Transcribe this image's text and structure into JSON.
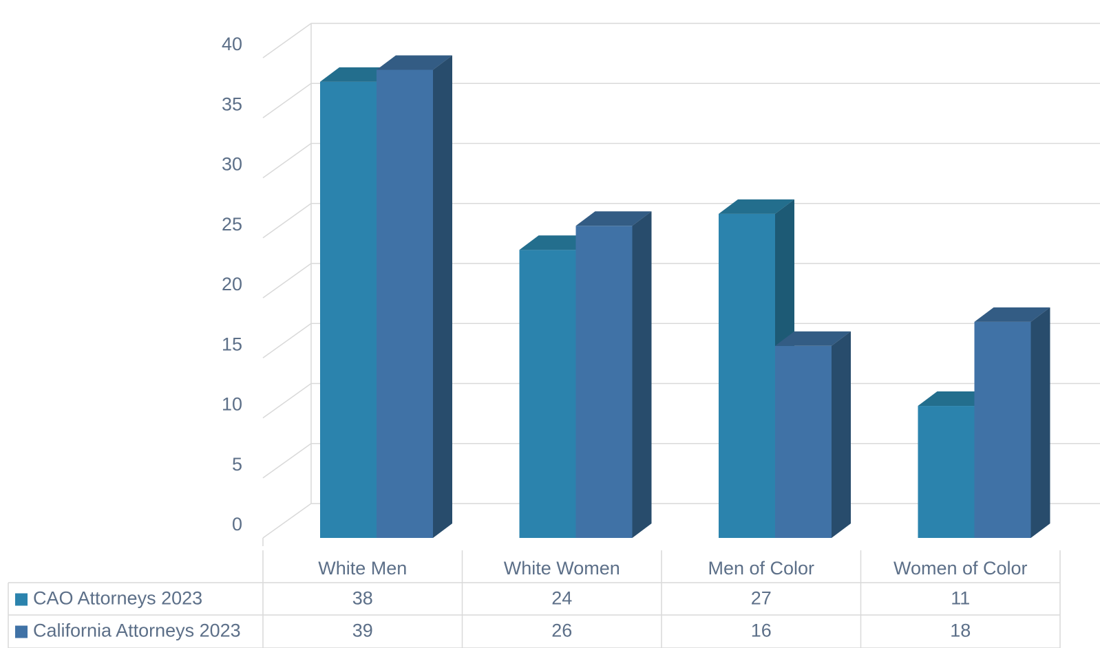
{
  "chart_data": {
    "type": "bar",
    "categories": [
      "White Men",
      "White Women",
      "Men of Color",
      "Women of Color"
    ],
    "series": [
      {
        "name": "CAO Attorneys 2023",
        "values": [
          38,
          24,
          27,
          11
        ]
      },
      {
        "name": "California Attorneys 2023",
        "values": [
          39,
          26,
          16,
          18
        ]
      }
    ],
    "ylim": [
      0,
      40
    ],
    "yticks": [
      0,
      5,
      10,
      15,
      20,
      25,
      30,
      35,
      40
    ],
    "grid": true,
    "legend": "data-table",
    "data_table": true,
    "style": "3d-clustered-column",
    "colors": {
      "CAO Attorneys 2023": {
        "front": "#2b83ad",
        "side": "#1d5a75",
        "top": "#236e8d"
      },
      "California Attorneys 2023": {
        "front": "#4072a6",
        "side": "#284c6c",
        "top": "#335c84"
      },
      "grid": "#d9d9d9",
      "text": "#5c6f88"
    }
  }
}
